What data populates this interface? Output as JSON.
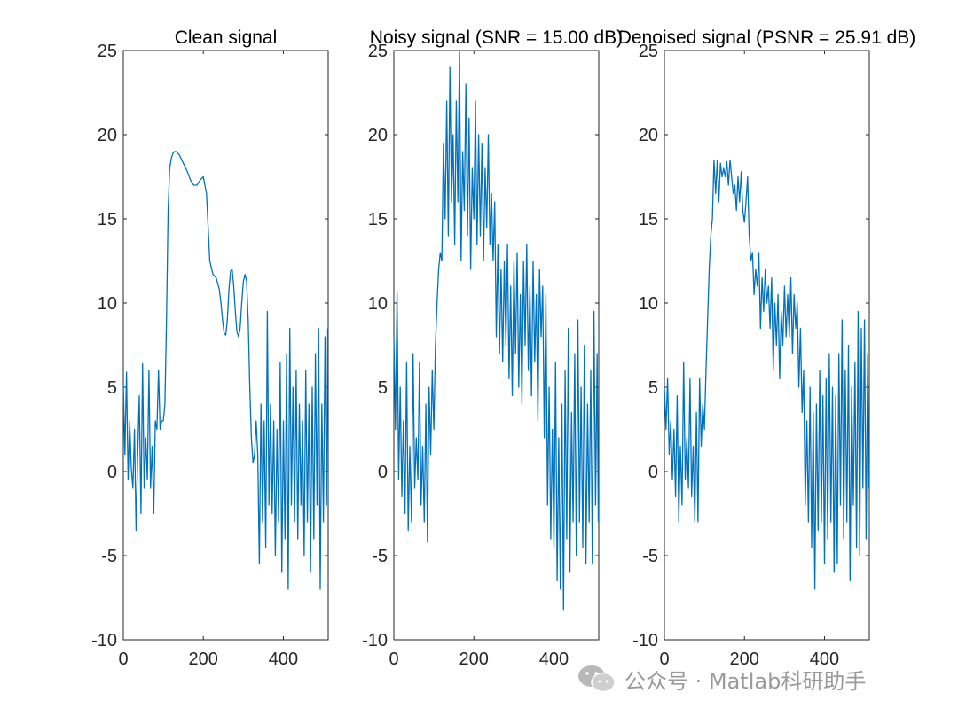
{
  "chart_data": [
    {
      "type": "line",
      "title": "Clean signal",
      "xlim": [
        0,
        512
      ],
      "ylim": [
        -10,
        25
      ],
      "xticks": [
        0,
        200,
        400
      ],
      "yticks": [
        -10,
        -5,
        0,
        5,
        10,
        15,
        20,
        25
      ],
      "series": [
        {
          "color": "#0072BD",
          "x": [
            0,
            4,
            8,
            12,
            16,
            20,
            24,
            28,
            32,
            36,
            40,
            44,
            48,
            52,
            56,
            60,
            64,
            68,
            72,
            76,
            80,
            84,
            88,
            92,
            96,
            100,
            104,
            108,
            112,
            116,
            120,
            124,
            128,
            132,
            136,
            140,
            144,
            148,
            152,
            156,
            160,
            168,
            176,
            184,
            192,
            200,
            208,
            216,
            224,
            232,
            240,
            244,
            248,
            252,
            256,
            260,
            264,
            268,
            272,
            276,
            280,
            284,
            288,
            292,
            296,
            300,
            304,
            308,
            312,
            316,
            320,
            324,
            328,
            332,
            336,
            340,
            344,
            348,
            352,
            356,
            360,
            364,
            368,
            372,
            376,
            380,
            384,
            388,
            392,
            396,
            400,
            404,
            408,
            412,
            416,
            420,
            424,
            428,
            432,
            436,
            440,
            444,
            448,
            452,
            456,
            460,
            464,
            468,
            472,
            476,
            480,
            484,
            488,
            492,
            496,
            500,
            504,
            508,
            511
          ],
          "y": [
            5.2,
            1.0,
            5.9,
            -0.5,
            3.0,
            0.2,
            -1.0,
            2.5,
            -3.5,
            1.0,
            4.5,
            -2.5,
            6.4,
            -1.0,
            2.0,
            -0.5,
            6.0,
            -1.0,
            1.5,
            -2.5,
            3.0,
            2.5,
            6.0,
            2.5,
            3.0,
            3.0,
            4.0,
            9.0,
            15.5,
            18.0,
            18.6,
            18.9,
            19.0,
            19.0,
            18.9,
            18.8,
            18.6,
            18.4,
            18.2,
            18.0,
            17.8,
            17.3,
            17.0,
            17.0,
            17.3,
            17.5,
            16.5,
            12.5,
            11.7,
            11.5,
            10.8,
            10.0,
            9.0,
            8.2,
            8.1,
            9.0,
            10.8,
            11.9,
            12.0,
            11.0,
            9.5,
            8.3,
            8.0,
            8.5,
            10.0,
            11.3,
            11.7,
            11.3,
            9.0,
            5.0,
            2.0,
            0.5,
            1.0,
            3.0,
            1.0,
            -5.5,
            4.0,
            -3.0,
            3.0,
            -4.5,
            9.5,
            -2.0,
            4.0,
            -2.5,
            3.0,
            -5.0,
            2.5,
            -3.0,
            6.5,
            -6.0,
            3.0,
            -4.0,
            7.0,
            -7.0,
            8.5,
            -2.0,
            5.0,
            -3.0,
            6.0,
            -4.0,
            4.0,
            -2.0,
            3.0,
            -5.0,
            6.0,
            -3.0,
            4.0,
            -6.0,
            5.0,
            -4.0,
            7.0,
            -2.0,
            8.5,
            -7.0,
            4.0,
            -3.0,
            8.0,
            -2.0,
            8.5
          ]
        }
      ]
    },
    {
      "type": "line",
      "title": "Noisy signal (SNR = 15.00 dB)",
      "xlim": [
        0,
        512
      ],
      "ylim": [
        -10,
        25
      ],
      "xticks": [
        0,
        200,
        400
      ],
      "yticks": [
        -10,
        -5,
        0,
        5,
        10,
        15,
        20,
        25
      ],
      "series": [
        {
          "color": "#0072BD",
          "x": [
            0,
            4,
            8,
            12,
            16,
            20,
            24,
            28,
            32,
            36,
            40,
            44,
            48,
            52,
            56,
            60,
            64,
            68,
            72,
            76,
            80,
            84,
            88,
            92,
            96,
            100,
            104,
            108,
            112,
            116,
            120,
            124,
            128,
            132,
            136,
            140,
            144,
            148,
            152,
            156,
            160,
            164,
            168,
            172,
            176,
            180,
            184,
            188,
            192,
            196,
            200,
            204,
            208,
            212,
            216,
            220,
            224,
            228,
            232,
            236,
            240,
            244,
            248,
            252,
            256,
            260,
            264,
            268,
            272,
            276,
            280,
            284,
            288,
            292,
            296,
            300,
            304,
            308,
            312,
            316,
            320,
            324,
            328,
            332,
            336,
            340,
            344,
            348,
            352,
            356,
            360,
            364,
            368,
            372,
            376,
            380,
            384,
            388,
            392,
            396,
            400,
            404,
            408,
            412,
            416,
            420,
            424,
            428,
            432,
            436,
            440,
            444,
            448,
            452,
            456,
            460,
            464,
            468,
            472,
            476,
            480,
            484,
            488,
            492,
            496,
            500,
            504,
            508,
            511
          ],
          "y": [
            8.0,
            2.5,
            10.7,
            -0.5,
            5.0,
            -1.5,
            3.0,
            -2.5,
            6.5,
            -3.5,
            1.5,
            -3.0,
            7.0,
            -1.0,
            2.0,
            -0.5,
            6.5,
            -2.0,
            1.5,
            -3.0,
            4.0,
            -4.2,
            5.0,
            1.0,
            6.0,
            2.5,
            7.5,
            10.0,
            12.0,
            13.0,
            12.5,
            19.5,
            15.0,
            22.0,
            14.0,
            24.0,
            16.0,
            20.0,
            13.5,
            22.0,
            16.0,
            25.0,
            12.5,
            19.0,
            15.5,
            23.0,
            14.0,
            21.0,
            12.0,
            18.0,
            15.0,
            22.0,
            13.5,
            20.0,
            14.0,
            19.5,
            12.5,
            18.0,
            14.5,
            20.0,
            13.5,
            16.5,
            12.5,
            16.0,
            8.0,
            13.5,
            7.0,
            12.0,
            6.5,
            12.5,
            7.5,
            13.5,
            5.5,
            11.0,
            4.5,
            12.5,
            7.0,
            13.0,
            5.0,
            10.5,
            4.0,
            12.5,
            7.5,
            13.5,
            6.0,
            11.0,
            4.5,
            12.5,
            6.5,
            10.5,
            3.0,
            12.0,
            8.0,
            11.0,
            2.0,
            10.5,
            -2.0,
            5.0,
            -4.0,
            2.5,
            -4.5,
            6.5,
            -6.5,
            2.0,
            -7.0,
            4.0,
            -8.2,
            6.0,
            -4.0,
            8.5,
            -6.0,
            3.5,
            -3.0,
            7.0,
            -5.0,
            9.0,
            -3.0,
            5.0,
            -4.5,
            7.5,
            -5.5,
            4.0,
            -3.0,
            6.0,
            -5.5,
            9.5,
            -2.0,
            7.0,
            -3.0
          ]
        }
      ]
    },
    {
      "type": "line",
      "title": "Denoised signal (PSNR = 25.91 dB)",
      "xlim": [
        0,
        512
      ],
      "ylim": [
        -10,
        25
      ],
      "xticks": [
        0,
        200,
        400
      ],
      "yticks": [
        -10,
        -5,
        0,
        5,
        10,
        15,
        20,
        25
      ],
      "series": [
        {
          "color": "#0072BD",
          "x": [
            0,
            4,
            8,
            12,
            16,
            20,
            24,
            28,
            32,
            36,
            40,
            44,
            48,
            52,
            56,
            60,
            64,
            68,
            72,
            76,
            80,
            84,
            88,
            92,
            96,
            100,
            104,
            108,
            112,
            116,
            120,
            124,
            128,
            132,
            136,
            140,
            144,
            148,
            152,
            156,
            160,
            164,
            168,
            172,
            176,
            180,
            184,
            188,
            192,
            196,
            200,
            204,
            208,
            212,
            216,
            220,
            224,
            228,
            232,
            236,
            240,
            244,
            248,
            252,
            256,
            260,
            264,
            268,
            272,
            276,
            280,
            284,
            288,
            292,
            296,
            300,
            304,
            308,
            312,
            316,
            320,
            324,
            328,
            332,
            336,
            340,
            344,
            348,
            352,
            356,
            360,
            364,
            368,
            372,
            376,
            380,
            384,
            388,
            392,
            396,
            400,
            404,
            408,
            412,
            416,
            420,
            424,
            428,
            432,
            436,
            440,
            444,
            448,
            452,
            456,
            460,
            464,
            468,
            472,
            476,
            480,
            484,
            488,
            492,
            496,
            500,
            504,
            508,
            511
          ],
          "y": [
            5.0,
            2.5,
            5.5,
            1.0,
            3.0,
            -0.5,
            2.5,
            -1.5,
            4.5,
            -3.0,
            1.5,
            -2.0,
            6.5,
            -0.5,
            2.0,
            -1.0,
            5.5,
            -1.5,
            1.5,
            -3.0,
            3.5,
            -3.0,
            5.5,
            1.5,
            4.0,
            2.5,
            6.0,
            9.0,
            12.0,
            14.0,
            15.0,
            18.5,
            16.5,
            18.5,
            16.0,
            18.3,
            17.5,
            18.0,
            17.5,
            18.4,
            17.0,
            18.5,
            17.5,
            16.5,
            17.0,
            15.5,
            17.5,
            16.0,
            17.8,
            15.5,
            14.8,
            16.0,
            17.5,
            14.0,
            12.5,
            13.0,
            10.5,
            12.0,
            11.0,
            13.0,
            8.5,
            11.5,
            9.5,
            12.0,
            10.0,
            11.0,
            8.5,
            11.5,
            6.0,
            10.0,
            7.5,
            10.5,
            5.5,
            9.5,
            7.5,
            11.0,
            8.0,
            10.5,
            8.0,
            11.5,
            7.0,
            10.5,
            8.5,
            10.0,
            5.0,
            8.5,
            3.5,
            6.0,
            -2.0,
            3.0,
            -3.0,
            5.0,
            -4.5,
            3.5,
            -7.0,
            4.0,
            -3.5,
            6.0,
            -3.0,
            4.5,
            -5.5,
            5.5,
            -4.0,
            7.0,
            -3.0,
            5.0,
            -6.0,
            4.5,
            -5.5,
            7.0,
            -2.0,
            9.0,
            -4.0,
            6.0,
            -3.0,
            7.5,
            -6.5,
            5.0,
            -2.0,
            6.5,
            -4.5,
            9.5,
            -5.0,
            8.5,
            -1.0,
            9.0,
            -4.0,
            7.0,
            -1.0
          ]
        }
      ]
    }
  ],
  "watermark": {
    "text": "公众号 · Matlab科研助手",
    "icon": "wechat-icon",
    "color": "#9a9a9a"
  }
}
